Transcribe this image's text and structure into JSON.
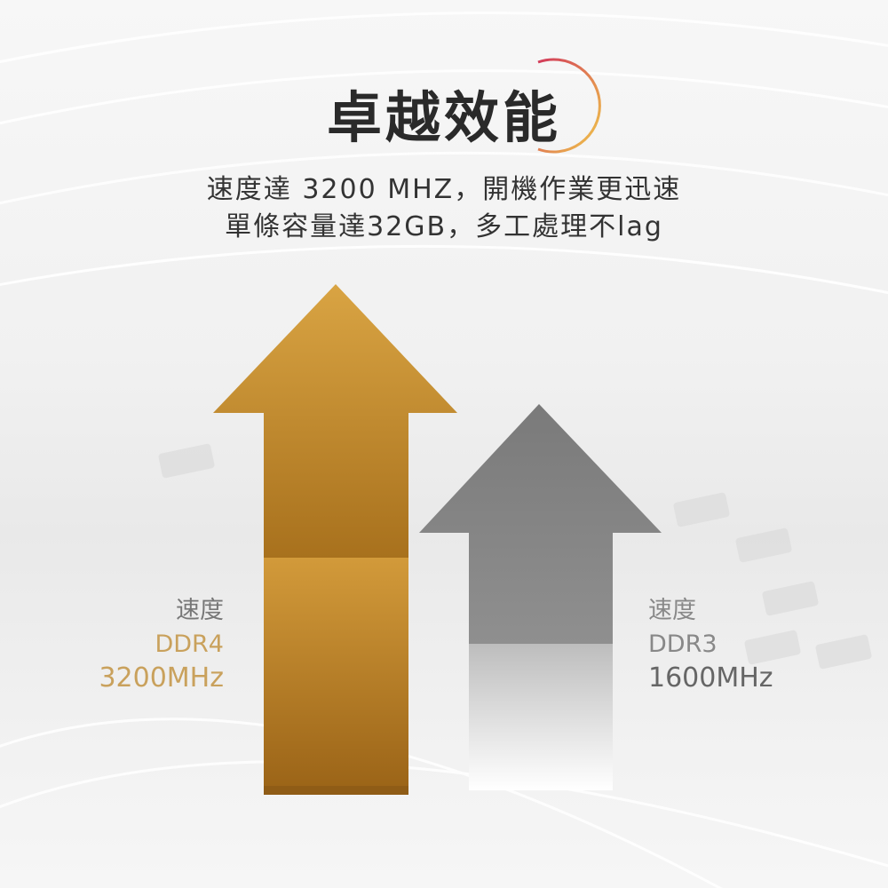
{
  "heading": "卓越效能",
  "subtitle_line1": "速度達 3200 MHZ，開機作業更迅速",
  "subtitle_line2": "單條容量達32GB，多工處理不lag",
  "ddr4": {
    "label": "速度",
    "type": "DDR4",
    "speed": "3200MHz"
  },
  "ddr3": {
    "label": "速度",
    "type": "DDR3",
    "speed": "1600MHz"
  },
  "colors": {
    "gold": "#c8902e",
    "gray": "#808080",
    "ddr4_text": "#c9a15c"
  }
}
